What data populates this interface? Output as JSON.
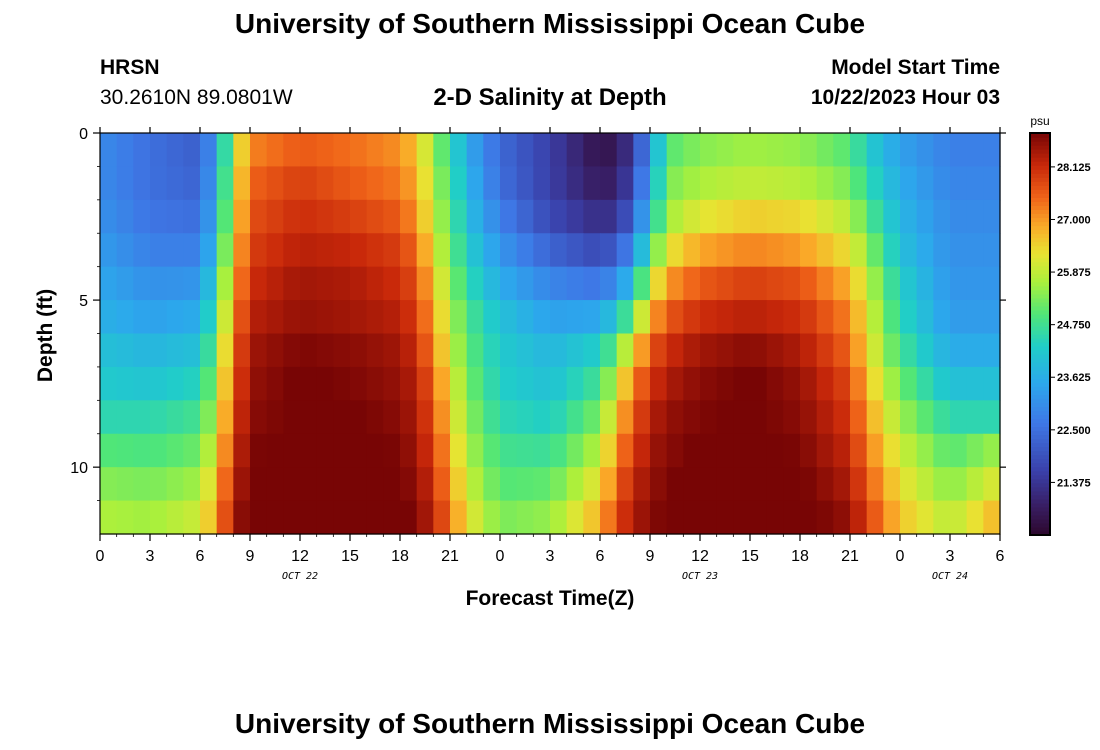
{
  "header": {
    "title": "University of Southern Mississippi Ocean Cube",
    "station": "HRSN",
    "coordinates": "30.2610N  89.0801W",
    "product": "2-D Salinity at Depth",
    "model_start_label": "Model Start Time",
    "model_start_value": "10/22/2023 Hour 03"
  },
  "footer": {
    "title": "University of Southern Mississippi Ocean Cube"
  },
  "chart_data": {
    "type": "heatmap",
    "title": "2-D Salinity at Depth",
    "xlabel": "Forecast Time(Z)",
    "ylabel": "Depth (ft)",
    "x_range_hours": [
      0,
      54
    ],
    "x_tick_hours": [
      0,
      3,
      6,
      9,
      12,
      15,
      18,
      21,
      24,
      27,
      30,
      33,
      36,
      39,
      42,
      45,
      48,
      51,
      54
    ],
    "x_tick_labels": [
      "0",
      "3",
      "6",
      "9",
      "12",
      "15",
      "18",
      "21",
      "0",
      "3",
      "6",
      "9",
      "12",
      "15",
      "18",
      "21",
      "0",
      "3",
      "6"
    ],
    "date_labels": [
      {
        "text": "OCT 22",
        "hour": 12
      },
      {
        "text": "OCT 23",
        "hour": 36
      },
      {
        "text": "OCT 24",
        "hour": 51
      }
    ],
    "y_range_ft": [
      0,
      12
    ],
    "y_ticks": [
      0,
      5,
      10
    ],
    "y_tick_labels": [
      "0",
      "5",
      "10"
    ],
    "colorbar": {
      "units": "psu",
      "min": 20.25,
      "max": 28.85,
      "tick_values": [
        21.375,
        22.5,
        23.625,
        24.75,
        25.875,
        27.0,
        28.125
      ],
      "tick_labels": [
        "21.375",
        "22.500",
        "23.625",
        "24.750",
        "25.875",
        "27.000",
        "28.125"
      ]
    },
    "depth_levels_ft": [
      0.5,
      1.5,
      2.5,
      3.5,
      4.5,
      5.5,
      6.5,
      7.5,
      8.5,
      9.5,
      10.5,
      11.5
    ],
    "time_hours": [
      0,
      3,
      6,
      7,
      8,
      9,
      12,
      15,
      18,
      19,
      20,
      21,
      22,
      24,
      27,
      30,
      31,
      32,
      33,
      34,
      36,
      39,
      42,
      45,
      46,
      48,
      51,
      54
    ],
    "salinity_psu": [
      [
        23.0,
        22.5,
        22.2,
        23.4,
        25.8,
        27.2,
        27.6,
        27.4,
        27.1,
        26.6,
        25.6,
        24.6,
        23.6,
        22.4,
        21.6,
        20.6,
        20.8,
        21.5,
        23.2,
        25.0,
        25.4,
        25.6,
        25.5,
        25.0,
        24.3,
        23.4,
        22.8,
        22.8
      ],
      [
        23.0,
        22.5,
        22.3,
        23.6,
        26.0,
        27.5,
        27.9,
        27.6,
        27.3,
        26.8,
        25.8,
        24.8,
        23.8,
        22.5,
        21.6,
        20.8,
        21.0,
        21.8,
        23.5,
        25.3,
        25.7,
        25.9,
        25.8,
        25.3,
        24.6,
        23.6,
        22.9,
        22.9
      ],
      [
        23.1,
        22.6,
        22.5,
        23.8,
        26.2,
        27.7,
        28.1,
        27.9,
        27.6,
        27.0,
        26.0,
        25.0,
        24.0,
        22.8,
        21.8,
        21.2,
        21.4,
        22.3,
        24.0,
        25.6,
        26.2,
        26.5,
        26.4,
        25.8,
        25.0,
        23.8,
        23.0,
        23.0
      ],
      [
        23.3,
        22.8,
        22.8,
        24.1,
        26.5,
        27.9,
        28.3,
        28.2,
        27.9,
        27.4,
        26.3,
        25.2,
        24.3,
        23.2,
        22.3,
        21.8,
        22.2,
        23.0,
        24.8,
        26.2,
        26.9,
        27.2,
        27.0,
        26.3,
        25.5,
        24.0,
        23.1,
        23.1
      ],
      [
        23.5,
        23.1,
        23.2,
        24.5,
        26.8,
        28.1,
        28.5,
        28.4,
        28.1,
        27.7,
        26.6,
        25.5,
        24.6,
        23.6,
        22.9,
        22.6,
        23.1,
        24.0,
        25.8,
        27.0,
        27.6,
        27.9,
        27.7,
        26.8,
        25.9,
        24.3,
        23.2,
        23.2
      ],
      [
        23.7,
        23.4,
        23.6,
        24.9,
        27.1,
        28.3,
        28.6,
        28.5,
        28.3,
        27.9,
        26.9,
        25.8,
        24.9,
        24.0,
        23.4,
        23.5,
        24.2,
        25.2,
        26.8,
        27.6,
        28.1,
        28.3,
        28.1,
        27.2,
        26.2,
        24.5,
        23.3,
        23.3
      ],
      [
        24.0,
        23.8,
        24.0,
        25.3,
        27.4,
        28.5,
        28.8,
        28.7,
        28.5,
        28.1,
        27.2,
        26.0,
        25.1,
        24.2,
        23.8,
        24.3,
        25.2,
        26.4,
        27.6,
        28.1,
        28.5,
        28.7,
        28.4,
        27.5,
        26.4,
        24.8,
        23.6,
        23.6
      ],
      [
        24.2,
        24.1,
        24.4,
        25.6,
        27.6,
        28.6,
        28.9,
        28.8,
        28.6,
        28.3,
        27.5,
        26.3,
        25.3,
        24.3,
        24.0,
        24.8,
        26.0,
        27.2,
        28.0,
        28.4,
        28.7,
        28.9,
        28.6,
        27.8,
        26.7,
        25.2,
        24.0,
        24.0
      ],
      [
        24.5,
        24.5,
        24.8,
        25.9,
        27.8,
        28.7,
        28.9,
        28.9,
        28.7,
        28.4,
        27.7,
        26.5,
        25.5,
        24.5,
        24.3,
        25.3,
        26.6,
        27.6,
        28.3,
        28.6,
        28.8,
        28.9,
        28.7,
        28.0,
        27.0,
        25.6,
        24.5,
        24.5
      ],
      [
        25.0,
        24.9,
        25.2,
        26.3,
        28.0,
        28.8,
        29.0,
        29.0,
        28.8,
        28.5,
        27.9,
        26.8,
        25.7,
        24.8,
        24.7,
        25.8,
        27.1,
        27.9,
        28.5,
        28.7,
        28.9,
        29.0,
        28.8,
        28.2,
        27.3,
        26.0,
        25.0,
        25.6
      ],
      [
        25.4,
        25.3,
        25.6,
        26.7,
        28.2,
        28.9,
        29.0,
        29.0,
        28.9,
        28.6,
        28.1,
        27.0,
        26.0,
        25.0,
        25.1,
        26.3,
        27.5,
        28.2,
        28.6,
        28.8,
        29.0,
        29.0,
        28.9,
        28.4,
        27.6,
        26.3,
        25.4,
        26.2
      ],
      [
        25.7,
        25.6,
        26.0,
        27.0,
        28.4,
        29.0,
        29.0,
        29.0,
        29.0,
        28.7,
        28.3,
        27.3,
        26.3,
        25.3,
        25.5,
        26.8,
        27.8,
        28.4,
        28.7,
        28.9,
        29.0,
        29.0,
        29.0,
        28.6,
        27.9,
        26.6,
        25.8,
        26.8
      ]
    ]
  }
}
